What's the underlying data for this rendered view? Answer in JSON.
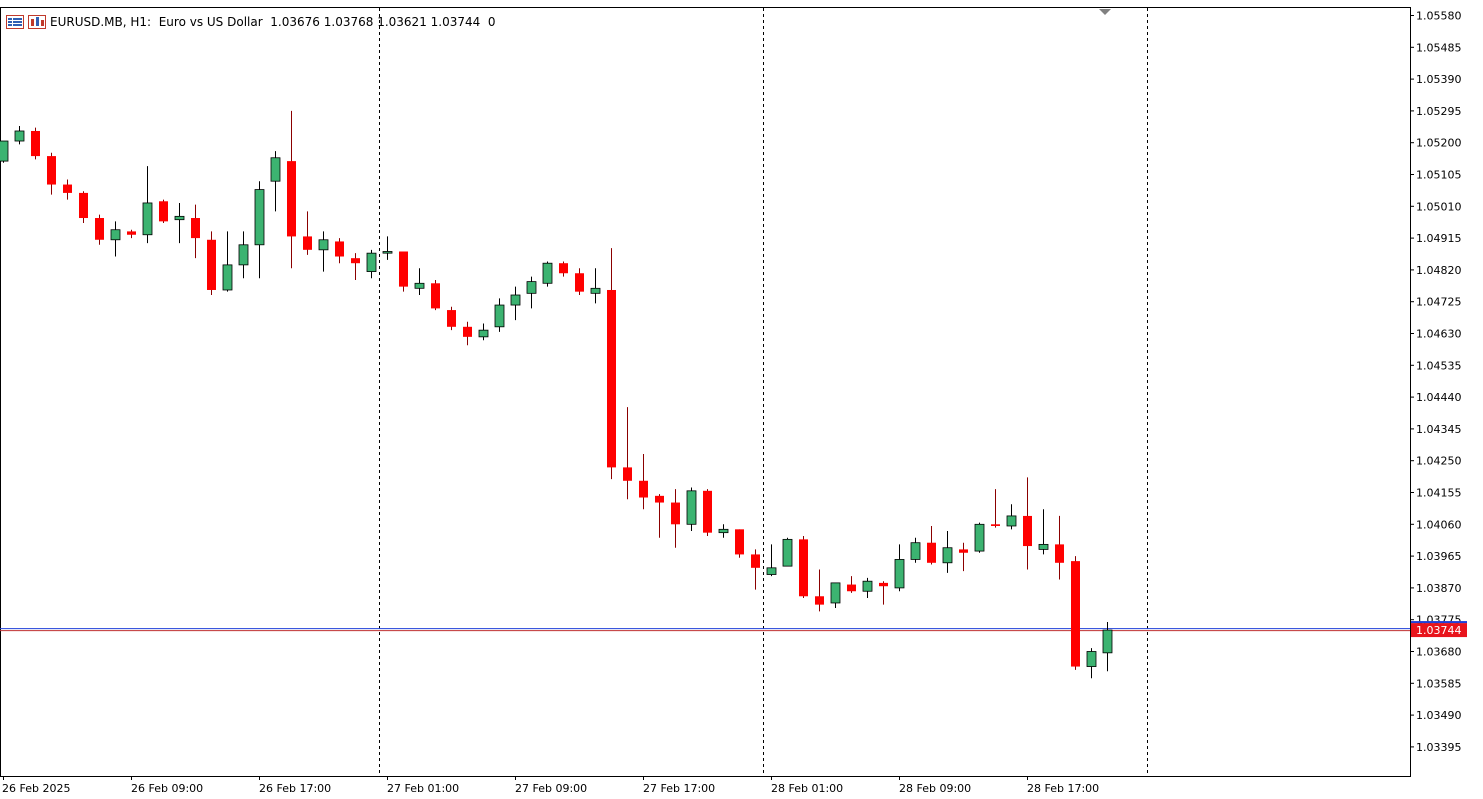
{
  "header": {
    "symbol": "EURUSD.MB, H1:",
    "description": "Euro vs US Dollar",
    "open": "1.03676",
    "high": "1.03768",
    "low": "1.03621",
    "close": "1.03744",
    "volume": "0",
    "icons": [
      "grid-list-icon",
      "chart-window-icon"
    ]
  },
  "chart_data": {
    "type": "candlestick",
    "title": "EURUSD.MB, H1: Euro vs US Dollar",
    "xlabel": "",
    "ylabel": "",
    "ylim": [
      1.033,
      1.0559
    ],
    "y_ticks": [
      "1.05580",
      "1.05485",
      "1.05390",
      "1.05295",
      "1.05200",
      "1.05105",
      "1.05010",
      "1.04915",
      "1.04820",
      "1.04725",
      "1.04630",
      "1.04535",
      "1.04440",
      "1.04345",
      "1.04250",
      "1.04155",
      "1.04060",
      "1.03965",
      "1.03870",
      "1.03775",
      "1.03680",
      "1.03585",
      "1.03490",
      "1.03395"
    ],
    "x_ticks": [
      {
        "label": "26 Feb 2025",
        "index": 0
      },
      {
        "label": "26 Feb 09:00",
        "index": 8
      },
      {
        "label": "26 Feb 17:00",
        "index": 16
      },
      {
        "label": "27 Feb 01:00",
        "index": 24
      },
      {
        "label": "27 Feb 09:00",
        "index": 32
      },
      {
        "label": "27 Feb 17:00",
        "index": 40
      },
      {
        "label": "28 Feb 01:00",
        "index": 48
      },
      {
        "label": "28 Feb 09:00",
        "index": 56
      },
      {
        "label": "28 Feb 17:00",
        "index": 64
      }
    ],
    "day_separators": [
      23,
      47,
      71
    ],
    "current_price": "1.03744",
    "bid_ask_line": 1.03744,
    "up_color": "#3CB371",
    "down_color": "#FF0000",
    "candles": [
      {
        "o": 1.05145,
        "h": 1.052,
        "l": 1.0514,
        "c": 1.05205
      },
      {
        "o": 1.05205,
        "h": 1.0525,
        "l": 1.05195,
        "c": 1.05235
      },
      {
        "o": 1.05235,
        "h": 1.05245,
        "l": 1.0515,
        "c": 1.0516
      },
      {
        "o": 1.0516,
        "h": 1.0517,
        "l": 1.05045,
        "c": 1.05075
      },
      {
        "o": 1.05075,
        "h": 1.0509,
        "l": 1.0503,
        "c": 1.0505
      },
      {
        "o": 1.0505,
        "h": 1.05055,
        "l": 1.0496,
        "c": 1.04975
      },
      {
        "o": 1.04975,
        "h": 1.04985,
        "l": 1.04895,
        "c": 1.0491
      },
      {
        "o": 1.0491,
        "h": 1.04965,
        "l": 1.0486,
        "c": 1.0494
      },
      {
        "o": 1.04935,
        "h": 1.0494,
        "l": 1.04915,
        "c": 1.04925
      },
      {
        "o": 1.04925,
        "h": 1.0513,
        "l": 1.049,
        "c": 1.0502
      },
      {
        "o": 1.05025,
        "h": 1.0503,
        "l": 1.0496,
        "c": 1.04965
      },
      {
        "o": 1.0497,
        "h": 1.0502,
        "l": 1.049,
        "c": 1.0498
      },
      {
        "o": 1.04975,
        "h": 1.05015,
        "l": 1.04855,
        "c": 1.04915
      },
      {
        "o": 1.0491,
        "h": 1.04935,
        "l": 1.04745,
        "c": 1.0476
      },
      {
        "o": 1.0476,
        "h": 1.04935,
        "l": 1.04755,
        "c": 1.04835
      },
      {
        "o": 1.04835,
        "h": 1.04935,
        "l": 1.04795,
        "c": 1.04895
      },
      {
        "o": 1.04895,
        "h": 1.05085,
        "l": 1.04795,
        "c": 1.0506
      },
      {
        "o": 1.05085,
        "h": 1.05175,
        "l": 1.04995,
        "c": 1.05155
      },
      {
        "o": 1.05145,
        "h": 1.05295,
        "l": 1.04825,
        "c": 1.0492
      },
      {
        "o": 1.0492,
        "h": 1.04995,
        "l": 1.04865,
        "c": 1.0488
      },
      {
        "o": 1.0488,
        "h": 1.04935,
        "l": 1.04815,
        "c": 1.0491
      },
      {
        "o": 1.04905,
        "h": 1.04915,
        "l": 1.0484,
        "c": 1.0486
      },
      {
        "o": 1.04855,
        "h": 1.0487,
        "l": 1.0479,
        "c": 1.0484
      },
      {
        "o": 1.04815,
        "h": 1.0488,
        "l": 1.04795,
        "c": 1.0487
      },
      {
        "o": 1.0487,
        "h": 1.0492,
        "l": 1.0485,
        "c": 1.04875
      },
      {
        "o": 1.04875,
        "h": 1.04875,
        "l": 1.04755,
        "c": 1.0477
      },
      {
        "o": 1.04765,
        "h": 1.04825,
        "l": 1.04745,
        "c": 1.0478
      },
      {
        "o": 1.0478,
        "h": 1.0479,
        "l": 1.047,
        "c": 1.04705
      },
      {
        "o": 1.047,
        "h": 1.0471,
        "l": 1.0464,
        "c": 1.0465
      },
      {
        "o": 1.0465,
        "h": 1.04665,
        "l": 1.04595,
        "c": 1.0462
      },
      {
        "o": 1.0462,
        "h": 1.0466,
        "l": 1.0461,
        "c": 1.0464
      },
      {
        "o": 1.0465,
        "h": 1.04735,
        "l": 1.04635,
        "c": 1.04715
      },
      {
        "o": 1.04715,
        "h": 1.0477,
        "l": 1.0467,
        "c": 1.04745
      },
      {
        "o": 1.0475,
        "h": 1.048,
        "l": 1.04705,
        "c": 1.04785
      },
      {
        "o": 1.0478,
        "h": 1.04845,
        "l": 1.0477,
        "c": 1.0484
      },
      {
        "o": 1.0484,
        "h": 1.04845,
        "l": 1.048,
        "c": 1.0481
      },
      {
        "o": 1.0481,
        "h": 1.04825,
        "l": 1.04745,
        "c": 1.04755
      },
      {
        "o": 1.0475,
        "h": 1.04825,
        "l": 1.0472,
        "c": 1.04765
      },
      {
        "o": 1.0476,
        "h": 1.04885,
        "l": 1.04195,
        "c": 1.0423
      },
      {
        "o": 1.0423,
        "h": 1.0441,
        "l": 1.04135,
        "c": 1.0419
      },
      {
        "o": 1.0419,
        "h": 1.0427,
        "l": 1.04105,
        "c": 1.0414
      },
      {
        "o": 1.04145,
        "h": 1.0415,
        "l": 1.0402,
        "c": 1.04125
      },
      {
        "o": 1.04125,
        "h": 1.04165,
        "l": 1.0399,
        "c": 1.0406
      },
      {
        "o": 1.0406,
        "h": 1.0417,
        "l": 1.0404,
        "c": 1.0416
      },
      {
        "o": 1.0416,
        "h": 1.04165,
        "l": 1.04025,
        "c": 1.04035
      },
      {
        "o": 1.04035,
        "h": 1.0406,
        "l": 1.0402,
        "c": 1.04045
      },
      {
        "o": 1.04045,
        "h": 1.04045,
        "l": 1.0396,
        "c": 1.0397
      },
      {
        "o": 1.0397,
        "h": 1.03985,
        "l": 1.03865,
        "c": 1.0393
      },
      {
        "o": 1.0391,
        "h": 1.04,
        "l": 1.03905,
        "c": 1.0393
      },
      {
        "o": 1.03935,
        "h": 1.0402,
        "l": 1.03935,
        "c": 1.04015
      },
      {
        "o": 1.04015,
        "h": 1.04025,
        "l": 1.0384,
        "c": 1.03845
      },
      {
        "o": 1.03845,
        "h": 1.03925,
        "l": 1.038,
        "c": 1.0382
      },
      {
        "o": 1.03825,
        "h": 1.03885,
        "l": 1.0381,
        "c": 1.03885
      },
      {
        "o": 1.0388,
        "h": 1.03905,
        "l": 1.03855,
        "c": 1.0386
      },
      {
        "o": 1.0386,
        "h": 1.039,
        "l": 1.0384,
        "c": 1.0389
      },
      {
        "o": 1.03885,
        "h": 1.0389,
        "l": 1.0382,
        "c": 1.03875
      },
      {
        "o": 1.0387,
        "h": 1.04,
        "l": 1.0386,
        "c": 1.03955
      },
      {
        "o": 1.03955,
        "h": 1.0402,
        "l": 1.03945,
        "c": 1.04005
      },
      {
        "o": 1.04005,
        "h": 1.04055,
        "l": 1.0394,
        "c": 1.03945
      },
      {
        "o": 1.03945,
        "h": 1.0404,
        "l": 1.03915,
        "c": 1.0399
      },
      {
        "o": 1.03985,
        "h": 1.04005,
        "l": 1.0392,
        "c": 1.03975
      },
      {
        "o": 1.0398,
        "h": 1.04065,
        "l": 1.03975,
        "c": 1.0406
      },
      {
        "o": 1.0406,
        "h": 1.04165,
        "l": 1.0405,
        "c": 1.04055
      },
      {
        "o": 1.04055,
        "h": 1.0412,
        "l": 1.04045,
        "c": 1.04085
      },
      {
        "o": 1.04085,
        "h": 1.042,
        "l": 1.03925,
        "c": 1.03995
      },
      {
        "o": 1.03985,
        "h": 1.04105,
        "l": 1.0397,
        "c": 1.04
      },
      {
        "o": 1.04,
        "h": 1.04085,
        "l": 1.03895,
        "c": 1.03945
      },
      {
        "o": 1.0395,
        "h": 1.03965,
        "l": 1.03625,
        "c": 1.03635
      },
      {
        "o": 1.03635,
        "h": 1.0369,
        "l": 1.036,
        "c": 1.0368
      },
      {
        "o": 1.03676,
        "h": 1.03768,
        "l": 1.03621,
        "c": 1.03744
      }
    ]
  }
}
